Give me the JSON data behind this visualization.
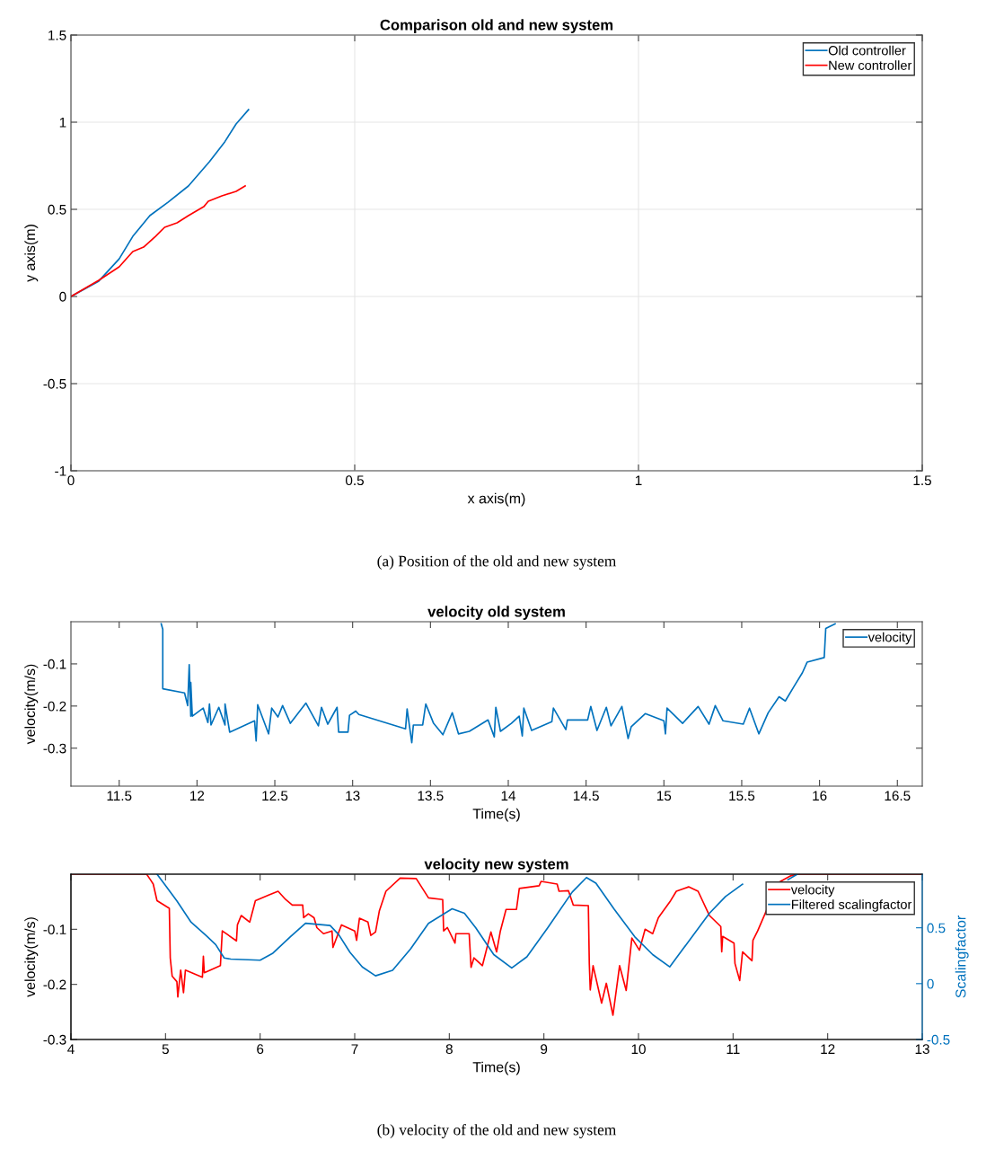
{
  "chart_data": [
    {
      "type": "line",
      "title": "Comparison old and new system",
      "xlabel": "x axis(m)",
      "ylabel": "y axis(m)",
      "xlim": [
        0,
        1.5
      ],
      "ylim": [
        -1,
        1.5
      ],
      "xticks": [
        0,
        0.5,
        1,
        1.5
      ],
      "yticks": [
        -1,
        -0.5,
        0,
        0.5,
        1,
        1.5
      ],
      "grid": true,
      "legend": "top right",
      "annotations": [
        "(a) Position of the old and new system"
      ],
      "series": [
        {
          "name": "Old controller",
          "color": "#0072bd",
          "x": [
            0,
            0.049,
            0.085,
            0.109,
            0.139,
            0.171,
            0.207,
            0.244,
            0.271,
            0.291,
            0.313
          ],
          "values": [
            0,
            0.088,
            0.216,
            0.345,
            0.464,
            0.541,
            0.634,
            0.773,
            0.887,
            0.99,
            1.072
          ]
        },
        {
          "name": "New controller",
          "color": "#ff0000",
          "x": [
            0,
            0.049,
            0.085,
            0.109,
            0.128,
            0.149,
            0.165,
            0.187,
            0.207,
            0.234,
            0.242,
            0.266,
            0.291,
            0.307
          ],
          "values": [
            0,
            0.093,
            0.17,
            0.258,
            0.283,
            0.345,
            0.397,
            0.423,
            0.464,
            0.515,
            0.546,
            0.577,
            0.603,
            0.634
          ]
        }
      ]
    },
    {
      "type": "line",
      "title": "velocity old system",
      "xlabel": "Time(s)",
      "ylabel": "velocity(m/s)",
      "xlim": [
        11.19,
        16.66
      ],
      "ylim": [
        -0.39,
        0
      ],
      "xticks": [
        11.5,
        12,
        12.5,
        13,
        13.5,
        14,
        14.5,
        15,
        15.5,
        16,
        16.5
      ],
      "yticks": [
        -0.3,
        -0.2,
        -0.1
      ],
      "grid": false,
      "legend": "top right",
      "series": [
        {
          "name": "velocity",
          "color": "#0072bd",
          "x": [
            11.77,
            11.78,
            11.78,
            11.92,
            11.94,
            11.95,
            11.96,
            11.96,
            11.97,
            12.04,
            12.07,
            12.08,
            12.09,
            12.14,
            12.18,
            12.18,
            12.21,
            12.37,
            12.38,
            12.39,
            12.46,
            12.48,
            12.52,
            12.55,
            12.6,
            12.7,
            12.78,
            12.8,
            12.84,
            12.9,
            12.91,
            12.97,
            12.98,
            13.02,
            13.04,
            13.34,
            13.35,
            13.38,
            13.39,
            13.45,
            13.47,
            13.52,
            13.58,
            13.64,
            13.68,
            13.75,
            13.87,
            13.91,
            13.92,
            13.95,
            14.02,
            14.07,
            14.09,
            14.1,
            14.15,
            14.28,
            14.29,
            14.37,
            14.38,
            14.51,
            14.53,
            14.57,
            14.63,
            14.66,
            14.73,
            14.77,
            14.79,
            14.88,
            15.0,
            15.01,
            15.02,
            15.12,
            15.22,
            15.29,
            15.33,
            15.38,
            15.51,
            15.55,
            15.61,
            15.67,
            15.74,
            15.78,
            15.84,
            15.89,
            15.92,
            16.03,
            16.04,
            16.1
          ],
          "values": [
            -0.005,
            -0.018,
            -0.159,
            -0.169,
            -0.199,
            -0.102,
            -0.224,
            -0.144,
            -0.224,
            -0.205,
            -0.239,
            -0.195,
            -0.245,
            -0.203,
            -0.245,
            -0.195,
            -0.262,
            -0.235,
            -0.283,
            -0.197,
            -0.266,
            -0.205,
            -0.226,
            -0.199,
            -0.241,
            -0.193,
            -0.247,
            -0.203,
            -0.243,
            -0.203,
            -0.262,
            -0.262,
            -0.222,
            -0.212,
            -0.22,
            -0.254,
            -0.207,
            -0.287,
            -0.245,
            -0.245,
            -0.195,
            -0.241,
            -0.268,
            -0.216,
            -0.266,
            -0.26,
            -0.233,
            -0.273,
            -0.203,
            -0.26,
            -0.241,
            -0.224,
            -0.271,
            -0.205,
            -0.258,
            -0.237,
            -0.205,
            -0.256,
            -0.233,
            -0.233,
            -0.201,
            -0.258,
            -0.203,
            -0.247,
            -0.201,
            -0.277,
            -0.249,
            -0.218,
            -0.235,
            -0.266,
            -0.205,
            -0.241,
            -0.201,
            -0.243,
            -0.199,
            -0.235,
            -0.243,
            -0.205,
            -0.266,
            -0.216,
            -0.178,
            -0.188,
            -0.151,
            -0.121,
            -0.096,
            -0.085,
            -0.016,
            -0.005
          ]
        }
      ]
    },
    {
      "type": "line",
      "title": "velocity new system",
      "xlabel": "Time(s)",
      "ylabel": "velocity(m/s)",
      "y2label": "Scalingfactor",
      "xlim": [
        4,
        13
      ],
      "ylim": [
        -0.3,
        0
      ],
      "y2lim": [
        -0.5,
        0.98
      ],
      "xticks": [
        4,
        5,
        6,
        7,
        8,
        9,
        10,
        11,
        12,
        13
      ],
      "yticks": [
        -0.3,
        -0.2,
        -0.1
      ],
      "y2ticks": [
        -0.5,
        0,
        0.5
      ],
      "grid": false,
      "legend": "top right",
      "annotations": [
        "(b) velocity of the old and new system"
      ],
      "series": [
        {
          "name": "velocity",
          "color": "#ff0000",
          "x": [
            4.01,
            4.8,
            4.84,
            4.87,
            4.91,
            5.04,
            5.05,
            5.07,
            5.12,
            5.13,
            5.16,
            5.19,
            5.21,
            5.39,
            5.4,
            5.41,
            5.58,
            5.6,
            5.75,
            5.76,
            5.8,
            5.89,
            5.95,
            6.09,
            6.19,
            6.27,
            6.34,
            6.45,
            6.46,
            6.51,
            6.57,
            6.6,
            6.67,
            6.76,
            6.77,
            6.86,
            7.0,
            7.02,
            7.05,
            7.14,
            7.17,
            7.22,
            7.26,
            7.33,
            7.48,
            7.65,
            7.78,
            7.93,
            7.94,
            7.98,
            8.06,
            8.07,
            8.21,
            8.23,
            8.26,
            8.35,
            8.44,
            8.5,
            8.54,
            8.6,
            8.71,
            8.74,
            8.95,
            8.97,
            9.14,
            9.16,
            9.26,
            9.31,
            9.47,
            9.48,
            9.49,
            9.52,
            9.61,
            9.66,
            9.73,
            9.8,
            9.87,
            9.93,
            10.01,
            10.07,
            10.15,
            10.21,
            10.34,
            10.4,
            10.53,
            10.63,
            10.75,
            10.87,
            10.88,
            10.89,
            11.01,
            11.02,
            11.07,
            11.1,
            11.2,
            11.21,
            11.26,
            11.48,
            11.61,
            11.68,
            13.0
          ],
          "values": [
            0,
            0,
            -0.01,
            -0.018,
            -0.048,
            -0.062,
            -0.152,
            -0.185,
            -0.195,
            -0.223,
            -0.174,
            -0.215,
            -0.174,
            -0.187,
            -0.149,
            -0.179,
            -0.166,
            -0.103,
            -0.121,
            -0.092,
            -0.075,
            -0.087,
            -0.048,
            -0.038,
            -0.031,
            -0.046,
            -0.056,
            -0.056,
            -0.079,
            -0.072,
            -0.079,
            -0.097,
            -0.108,
            -0.103,
            -0.133,
            -0.092,
            -0.103,
            -0.12,
            -0.08,
            -0.087,
            -0.111,
            -0.105,
            -0.067,
            -0.031,
            -0.007,
            -0.008,
            -0.043,
            -0.046,
            -0.103,
            -0.097,
            -0.125,
            -0.108,
            -0.108,
            -0.169,
            -0.152,
            -0.166,
            -0.105,
            -0.141,
            -0.103,
            -0.064,
            -0.064,
            -0.026,
            -0.021,
            -0.013,
            -0.018,
            -0.031,
            -0.03,
            -0.056,
            -0.057,
            -0.162,
            -0.21,
            -0.166,
            -0.234,
            -0.198,
            -0.256,
            -0.166,
            -0.211,
            -0.116,
            -0.138,
            -0.1,
            -0.108,
            -0.079,
            -0.048,
            -0.031,
            -0.023,
            -0.031,
            -0.075,
            -0.095,
            -0.141,
            -0.113,
            -0.125,
            -0.162,
            -0.193,
            -0.141,
            -0.157,
            -0.12,
            -0.103,
            -0.015,
            -0.003,
            0,
            0
          ]
        },
        {
          "name": "Filtered scalingfactor",
          "color": "#0072bd",
          "axis": "y2",
          "x": [
            4.91,
            4.99,
            5.12,
            5.27,
            5.43,
            5.53,
            5.62,
            5.69,
            6.0,
            6.13,
            6.32,
            6.48,
            6.74,
            6.83,
            6.95,
            7.08,
            7.22,
            7.4,
            7.59,
            7.78,
            8.03,
            8.16,
            8.28,
            8.47,
            8.66,
            8.82,
            9.04,
            9.3,
            9.45,
            9.55,
            9.74,
            9.96,
            10.15,
            10.33,
            10.47,
            10.75,
            10.92,
            11.1,
            11.45,
            11.58,
            11.68
          ],
          "values": [
            0.98,
            0.89,
            0.74,
            0.55,
            0.43,
            0.35,
            0.23,
            0.22,
            0.21,
            0.27,
            0.42,
            0.54,
            0.52,
            0.44,
            0.28,
            0.15,
            0.07,
            0.12,
            0.31,
            0.54,
            0.67,
            0.63,
            0.5,
            0.26,
            0.14,
            0.24,
            0.5,
            0.82,
            0.95,
            0.9,
            0.67,
            0.42,
            0.26,
            0.15,
            0.31,
            0.63,
            0.78,
            0.89,
            null,
            0.93,
            0.98
          ]
        }
      ]
    }
  ]
}
